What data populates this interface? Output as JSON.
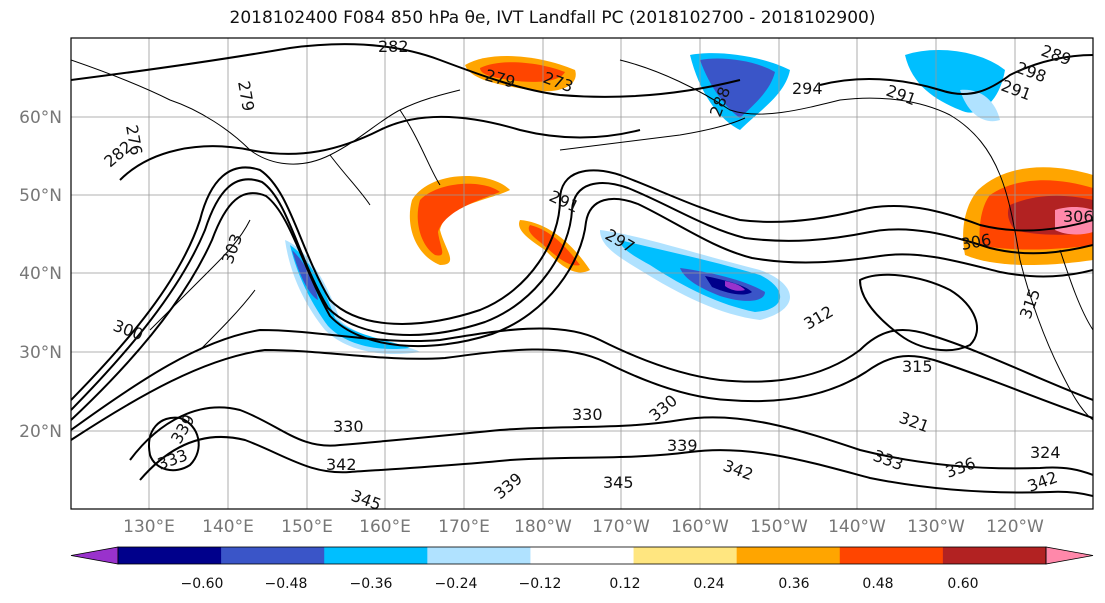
{
  "title": "2018102400 F084 850 hPa θe, IVT Landfall PC (2018102700 - 2018102900)",
  "latitude_labels": [
    "60°N",
    "50°N",
    "40°N",
    "30°N",
    "20°N"
  ],
  "longitude_labels": [
    "130°E",
    "140°E",
    "150°E",
    "160°E",
    "170°E",
    "180°W",
    "170°W",
    "160°W",
    "150°W",
    "140°W",
    "130°W",
    "120°W"
  ],
  "colorbar": {
    "ticks": [
      "−0.60",
      "−0.48",
      "−0.36",
      "−0.24",
      "−0.12",
      "0.12",
      "0.24",
      "0.36",
      "0.48",
      "0.60"
    ],
    "colors": [
      "#9932cc",
      "#00008b",
      "#3a55c8",
      "#00bfff",
      "#b0e2ff",
      "#ffffff",
      "#ffe680",
      "#ffa500",
      "#ff4500",
      "#b22222",
      "#ff88aa"
    ]
  },
  "contour_labels": [
    "282",
    "279",
    "276",
    "282",
    "273",
    "279",
    "294",
    "291",
    "288",
    "291",
    "298",
    "289",
    "291",
    "297",
    "303",
    "300",
    "306",
    "306",
    "312",
    "315",
    "315",
    "321",
    "330",
    "330",
    "330",
    "339",
    "342",
    "342",
    "333",
    "336",
    "324",
    "342",
    "345",
    "345",
    "339",
    "333",
    "339"
  ]
}
